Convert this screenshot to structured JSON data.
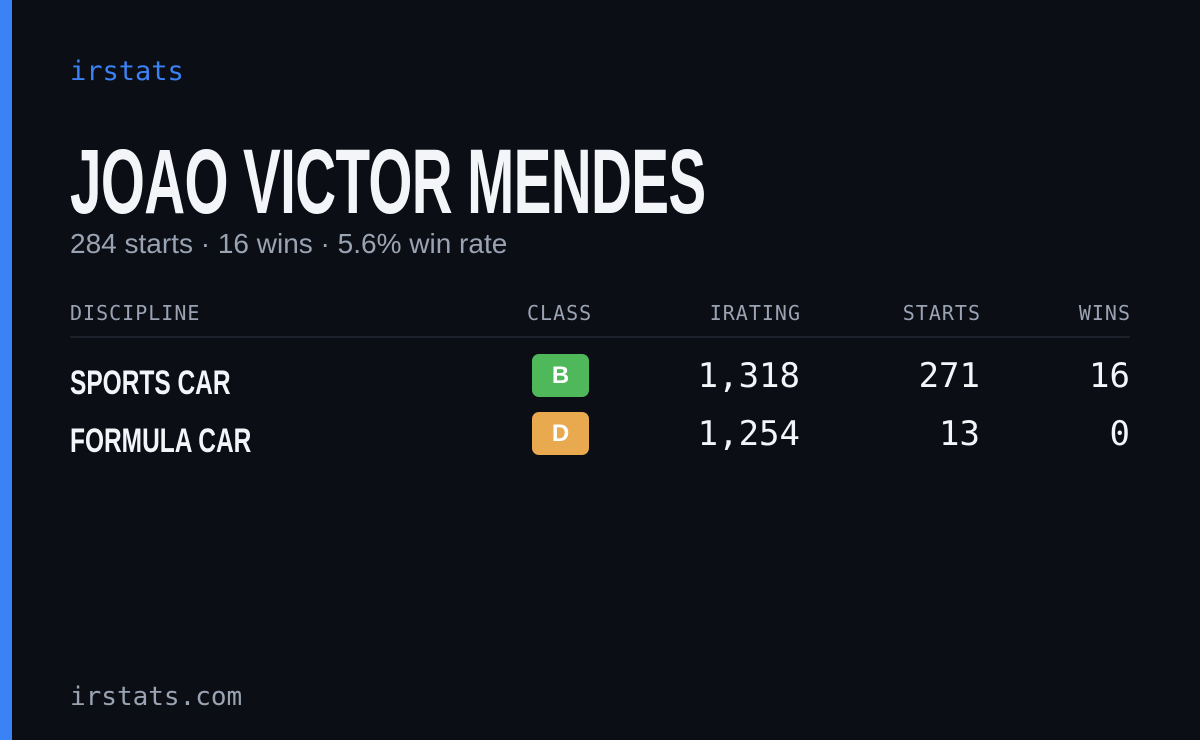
{
  "brand": "irstats",
  "header": {
    "title": "JOAO VICTOR MENDES",
    "subtitle": "284 starts · 16 wins · 5.6% win rate"
  },
  "table": {
    "columns": [
      "DISCIPLINE",
      "CLASS",
      "IRATING",
      "STARTS",
      "WINS"
    ],
    "rows": [
      [
        "SPORTS CAR",
        "B",
        "1,318",
        "271",
        "16"
      ],
      [
        "FORMULA CAR",
        "D",
        "1,254",
        "13",
        "0"
      ]
    ]
  },
  "footer": "irstats.com"
}
